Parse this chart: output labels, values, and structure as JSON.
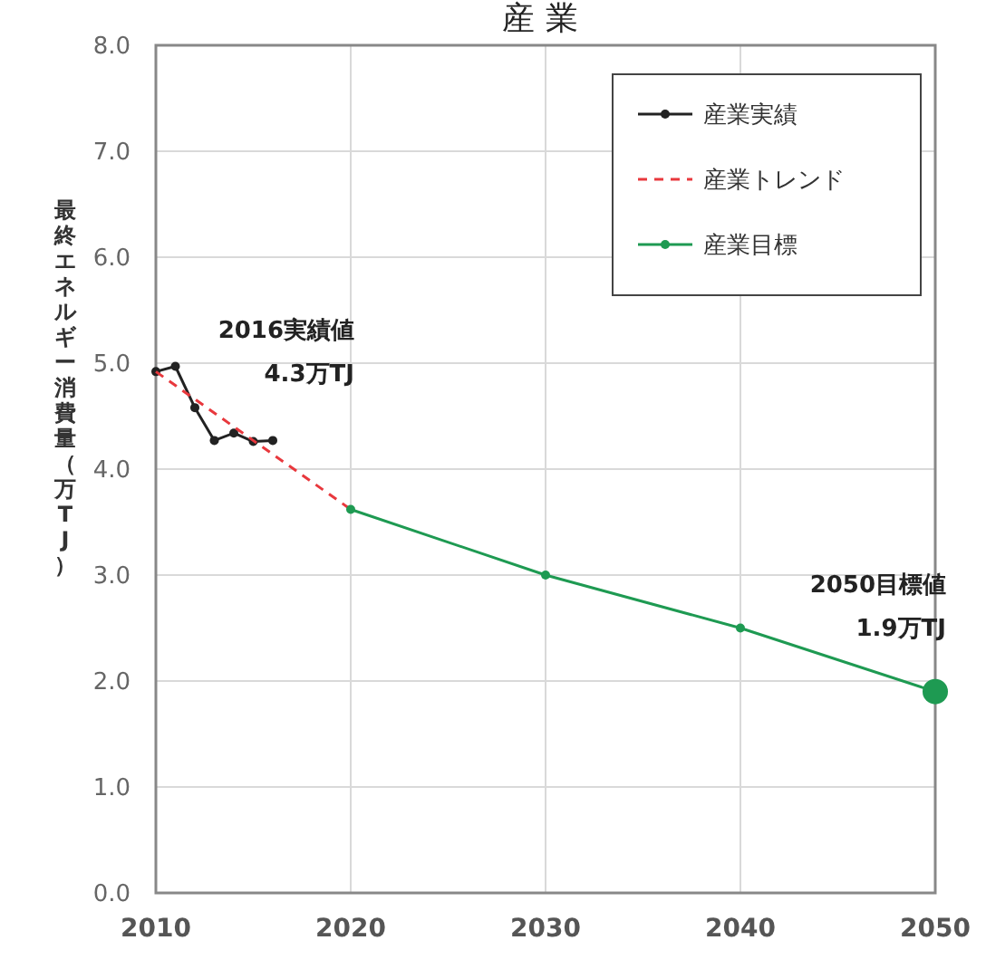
{
  "chart_data": {
    "type": "line",
    "title": "産業",
    "ylabel": "最終エネルギー消費量（万TJ）",
    "xlim": [
      2010,
      2050
    ],
    "xticks": [
      2010,
      2020,
      2030,
      2040,
      2050
    ],
    "ylim": [
      0,
      8
    ],
    "yticks": [
      {
        "value": 0,
        "label": "0.0"
      },
      {
        "value": 1,
        "label": "1.0"
      },
      {
        "value": 2,
        "label": "2.0"
      },
      {
        "value": 3,
        "label": "3.0"
      },
      {
        "value": 4,
        "label": "4.0"
      },
      {
        "value": 5,
        "label": "5.0"
      },
      {
        "value": 6,
        "label": "6.0"
      },
      {
        "value": 7,
        "label": "7.0"
      },
      {
        "value": 8,
        "label": "8.0"
      }
    ],
    "grid": true,
    "legend": "top right",
    "series": [
      {
        "name": "産業実績",
        "color": "#222222",
        "marker": "circle",
        "line_style": "solid",
        "x": [
          2010,
          2011,
          2012,
          2013,
          2014,
          2015,
          2016
        ],
        "values": [
          4.92,
          4.97,
          4.58,
          4.27,
          4.34,
          4.26,
          4.27
        ]
      },
      {
        "name": "産業トレンド",
        "color": "#e8383d",
        "marker": "none",
        "line_style": "dashed",
        "x": [
          2010,
          2020
        ],
        "values": [
          4.92,
          3.62
        ]
      },
      {
        "name": "産業目標",
        "color": "#1e9a52",
        "marker": "circle",
        "line_style": "solid",
        "x": [
          2020,
          2030,
          2040,
          2050
        ],
        "values": [
          3.62,
          3.0,
          2.5,
          1.9
        ]
      }
    ],
    "annotations": [
      {
        "text": "2016実績値\n4.3万TJ",
        "x": 2016,
        "y": 4.3
      },
      {
        "text": "2050目標値\n1.9万TJ",
        "x": 2050,
        "y": 1.9
      }
    ]
  }
}
